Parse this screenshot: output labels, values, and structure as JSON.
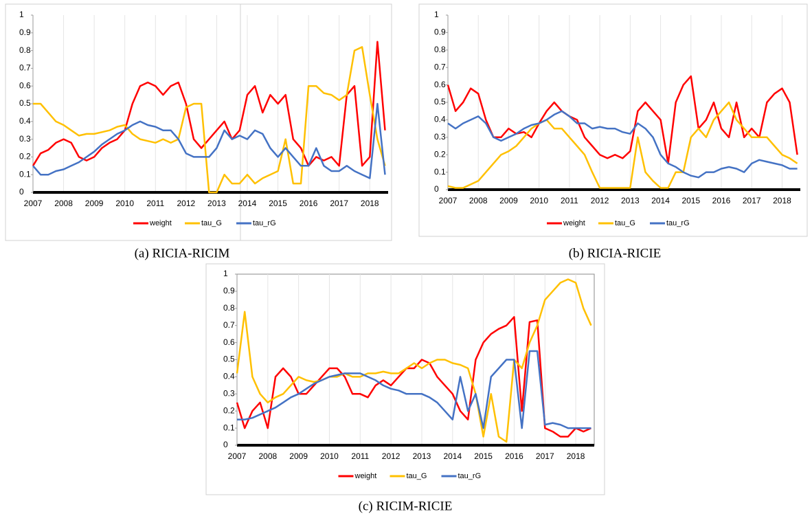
{
  "chart_data": [
    {
      "type": "line",
      "caption": "(a) RICIA-RICIM",
      "x": [
        2007,
        2007.25,
        2007.5,
        2007.75,
        2008,
        2008.25,
        2008.5,
        2008.75,
        2009,
        2009.25,
        2009.5,
        2009.75,
        2010,
        2010.25,
        2010.5,
        2010.75,
        2011,
        2011.25,
        2011.5,
        2011.75,
        2012,
        2012.25,
        2012.5,
        2012.75,
        2013,
        2013.25,
        2013.5,
        2013.75,
        2014,
        2014.25,
        2014.5,
        2014.75,
        2015,
        2015.25,
        2015.5,
        2015.75,
        2016,
        2016.25,
        2016.5,
        2016.75,
        2017,
        2017.25,
        2017.5,
        2017.75,
        2018,
        2018.25,
        2018.5
      ],
      "xlim": [
        2007,
        2018.6
      ],
      "xticks": [
        2007,
        2008,
        2009,
        2010,
        2011,
        2012,
        2013,
        2014,
        2015,
        2016,
        2017,
        2018
      ],
      "ylim": [
        0,
        1
      ],
      "yticks": [
        0,
        0.1,
        0.2,
        0.3,
        0.4,
        0.5,
        0.6,
        0.7,
        0.8,
        0.9,
        1
      ],
      "grid": true,
      "series": [
        {
          "name": "weight",
          "color": "#ff0000",
          "values": [
            0.15,
            0.22,
            0.24,
            0.28,
            0.3,
            0.28,
            0.2,
            0.18,
            0.2,
            0.25,
            0.28,
            0.3,
            0.35,
            0.5,
            0.6,
            0.62,
            0.6,
            0.55,
            0.6,
            0.62,
            0.5,
            0.3,
            0.25,
            0.3,
            0.35,
            0.4,
            0.3,
            0.35,
            0.55,
            0.6,
            0.45,
            0.55,
            0.5,
            0.55,
            0.3,
            0.25,
            0.15,
            0.2,
            0.18,
            0.2,
            0.15,
            0.55,
            0.6,
            0.15,
            0.2,
            0.85,
            0.35
          ]
        },
        {
          "name": "tau_G",
          "color": "#ffc000",
          "values": [
            0.5,
            0.5,
            0.45,
            0.4,
            0.38,
            0.35,
            0.32,
            0.33,
            0.33,
            0.34,
            0.35,
            0.37,
            0.38,
            0.33,
            0.3,
            0.29,
            0.28,
            0.3,
            0.28,
            0.3,
            0.48,
            0.5,
            0.5,
            0.0,
            0.0,
            0.1,
            0.05,
            0.05,
            0.1,
            0.05,
            0.08,
            0.1,
            0.12,
            0.3,
            0.05,
            0.05,
            0.6,
            0.6,
            0.56,
            0.55,
            0.52,
            0.55,
            0.8,
            0.82,
            0.55,
            0.3,
            0.15
          ]
        },
        {
          "name": "tau_rG",
          "color": "#4472c4",
          "values": [
            0.15,
            0.1,
            0.1,
            0.12,
            0.13,
            0.15,
            0.17,
            0.2,
            0.23,
            0.27,
            0.3,
            0.33,
            0.35,
            0.38,
            0.4,
            0.38,
            0.37,
            0.35,
            0.35,
            0.3,
            0.22,
            0.2,
            0.2,
            0.2,
            0.25,
            0.35,
            0.3,
            0.32,
            0.3,
            0.35,
            0.33,
            0.25,
            0.2,
            0.25,
            0.2,
            0.15,
            0.15,
            0.25,
            0.15,
            0.12,
            0.12,
            0.15,
            0.12,
            0.1,
            0.08,
            0.5,
            0.1
          ]
        }
      ]
    },
    {
      "type": "line",
      "caption": "(b) RICIA-RICIE",
      "x": [
        2007,
        2007.25,
        2007.5,
        2007.75,
        2008,
        2008.25,
        2008.5,
        2008.75,
        2009,
        2009.25,
        2009.5,
        2009.75,
        2010,
        2010.25,
        2010.5,
        2010.75,
        2011,
        2011.25,
        2011.5,
        2011.75,
        2012,
        2012.25,
        2012.5,
        2012.75,
        2013,
        2013.25,
        2013.5,
        2013.75,
        2014,
        2014.25,
        2014.5,
        2014.75,
        2015,
        2015.25,
        2015.5,
        2015.75,
        2016,
        2016.25,
        2016.5,
        2016.75,
        2017,
        2017.25,
        2017.5,
        2017.75,
        2018,
        2018.25,
        2018.5
      ],
      "xlim": [
        2007,
        2018.6
      ],
      "xticks": [
        2007,
        2008,
        2009,
        2010,
        2011,
        2012,
        2013,
        2014,
        2015,
        2016,
        2017,
        2018
      ],
      "ylim": [
        0,
        1
      ],
      "yticks": [
        0,
        0.1,
        0.2,
        0.3,
        0.4,
        0.5,
        0.6,
        0.7,
        0.8,
        0.9,
        1
      ],
      "grid": true,
      "series": [
        {
          "name": "weight",
          "color": "#ff0000",
          "values": [
            0.6,
            0.45,
            0.5,
            0.58,
            0.55,
            0.4,
            0.3,
            0.3,
            0.35,
            0.32,
            0.33,
            0.3,
            0.38,
            0.45,
            0.5,
            0.45,
            0.42,
            0.4,
            0.3,
            0.25,
            0.2,
            0.18,
            0.2,
            0.18,
            0.22,
            0.45,
            0.5,
            0.45,
            0.4,
            0.15,
            0.5,
            0.6,
            0.65,
            0.35,
            0.4,
            0.5,
            0.35,
            0.3,
            0.5,
            0.3,
            0.35,
            0.3,
            0.5,
            0.55,
            0.58,
            0.5,
            0.2
          ]
        },
        {
          "name": "tau_G",
          "color": "#ffc000",
          "values": [
            0.02,
            0.01,
            0.01,
            0.03,
            0.05,
            0.1,
            0.15,
            0.2,
            0.22,
            0.25,
            0.3,
            0.35,
            0.38,
            0.4,
            0.35,
            0.35,
            0.3,
            0.25,
            0.2,
            0.1,
            0.01,
            0.01,
            0.01,
            0.01,
            0.01,
            0.3,
            0.1,
            0.05,
            0.01,
            0.01,
            0.1,
            0.1,
            0.3,
            0.35,
            0.3,
            0.4,
            0.45,
            0.5,
            0.4,
            0.35,
            0.3,
            0.3,
            0.3,
            0.25,
            0.2,
            0.18,
            0.15
          ]
        },
        {
          "name": "tau_rG",
          "color": "#4472c4",
          "values": [
            0.38,
            0.35,
            0.38,
            0.4,
            0.42,
            0.38,
            0.3,
            0.28,
            0.3,
            0.32,
            0.35,
            0.37,
            0.38,
            0.4,
            0.43,
            0.45,
            0.42,
            0.38,
            0.38,
            0.35,
            0.36,
            0.35,
            0.35,
            0.33,
            0.32,
            0.38,
            0.35,
            0.3,
            0.2,
            0.15,
            0.13,
            0.1,
            0.08,
            0.07,
            0.1,
            0.1,
            0.12,
            0.13,
            0.12,
            0.1,
            0.15,
            0.17,
            0.16,
            0.15,
            0.14,
            0.12,
            0.12
          ]
        }
      ]
    },
    {
      "type": "line",
      "caption": "(c) RICIM-RICIE",
      "x": [
        2007,
        2007.25,
        2007.5,
        2007.75,
        2008,
        2008.25,
        2008.5,
        2008.75,
        2009,
        2009.25,
        2009.5,
        2009.75,
        2010,
        2010.25,
        2010.5,
        2010.75,
        2011,
        2011.25,
        2011.5,
        2011.75,
        2012,
        2012.25,
        2012.5,
        2012.75,
        2013,
        2013.25,
        2013.5,
        2013.75,
        2014,
        2014.25,
        2014.5,
        2014.75,
        2015,
        2015.25,
        2015.5,
        2015.75,
        2016,
        2016.25,
        2016.5,
        2016.75,
        2017,
        2017.25,
        2017.5,
        2017.75,
        2018,
        2018.25,
        2018.5
      ],
      "xlim": [
        2007,
        2018.6
      ],
      "xticks": [
        2007,
        2008,
        2009,
        2010,
        2011,
        2012,
        2013,
        2014,
        2015,
        2016,
        2017,
        2018
      ],
      "ylim": [
        0,
        1
      ],
      "yticks": [
        0,
        0.1,
        0.2,
        0.3,
        0.4,
        0.5,
        0.6,
        0.7,
        0.8,
        0.9,
        1
      ],
      "grid": true,
      "series": [
        {
          "name": "weight",
          "color": "#ff0000",
          "values": [
            0.25,
            0.1,
            0.2,
            0.25,
            0.1,
            0.4,
            0.45,
            0.4,
            0.3,
            0.3,
            0.35,
            0.4,
            0.45,
            0.45,
            0.4,
            0.3,
            0.3,
            0.28,
            0.35,
            0.38,
            0.35,
            0.4,
            0.45,
            0.45,
            0.5,
            0.48,
            0.4,
            0.35,
            0.3,
            0.2,
            0.15,
            0.5,
            0.6,
            0.65,
            0.68,
            0.7,
            0.75,
            0.2,
            0.72,
            0.73,
            0.1,
            0.08,
            0.05,
            0.05,
            0.1,
            0.08,
            0.1
          ]
        },
        {
          "name": "tau_G",
          "color": "#ffc000",
          "values": [
            0.42,
            0.78,
            0.4,
            0.3,
            0.25,
            0.28,
            0.3,
            0.35,
            0.4,
            0.38,
            0.37,
            0.38,
            0.4,
            0.4,
            0.42,
            0.4,
            0.4,
            0.42,
            0.42,
            0.43,
            0.42,
            0.42,
            0.45,
            0.48,
            0.45,
            0.48,
            0.5,
            0.5,
            0.48,
            0.47,
            0.45,
            0.3,
            0.05,
            0.3,
            0.05,
            0.02,
            0.5,
            0.45,
            0.6,
            0.7,
            0.85,
            0.9,
            0.95,
            0.97,
            0.95,
            0.8,
            0.7
          ]
        },
        {
          "name": "tau_rG",
          "color": "#4472c4",
          "values": [
            0.15,
            0.15,
            0.16,
            0.18,
            0.2,
            0.22,
            0.25,
            0.28,
            0.3,
            0.33,
            0.36,
            0.38,
            0.4,
            0.41,
            0.42,
            0.42,
            0.42,
            0.4,
            0.38,
            0.35,
            0.33,
            0.32,
            0.3,
            0.3,
            0.3,
            0.28,
            0.25,
            0.2,
            0.15,
            0.4,
            0.2,
            0.3,
            0.1,
            0.4,
            0.45,
            0.5,
            0.5,
            0.1,
            0.55,
            0.55,
            0.12,
            0.13,
            0.12,
            0.1,
            0.1,
            0.1,
            0.1
          ]
        }
      ]
    }
  ]
}
